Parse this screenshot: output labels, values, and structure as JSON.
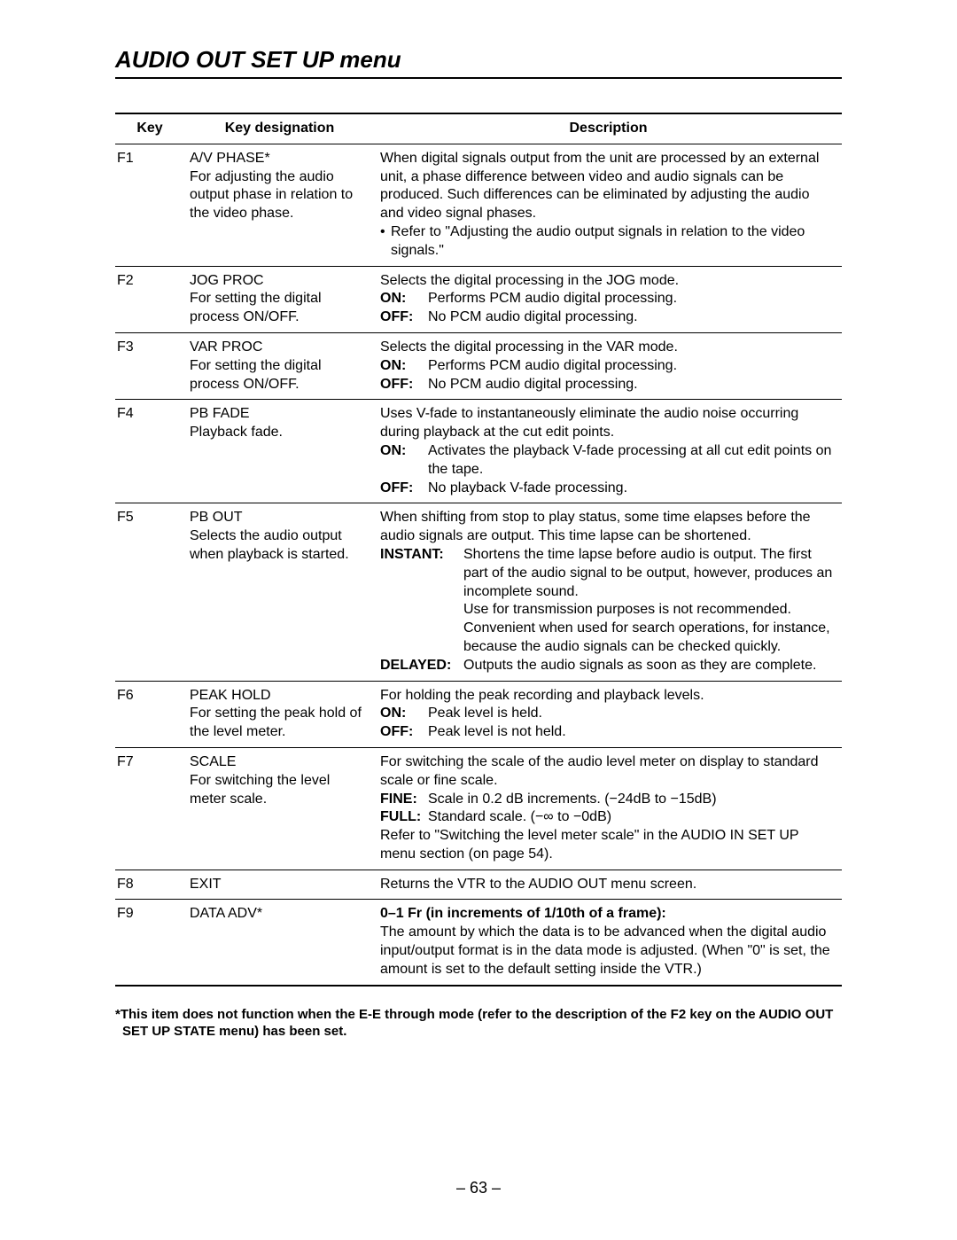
{
  "title": "AUDIO OUT SET UP menu",
  "headers": {
    "key": "Key",
    "designation": "Key designation",
    "description": "Description"
  },
  "rows": [
    {
      "key": "F1",
      "term": "A/V PHASE*",
      "sub": "For adjusting the audio output phase in relation to the video phase.",
      "desc_intro": "When digital signals output from the unit are processed by an external unit, a phase difference between video and audio signals can be produced. Such differences can be eliminated by adjusting the audio and video signal phases.",
      "bullets": [
        "Refer to \"Adjusting the audio output signals in relation to the video signals.\""
      ]
    },
    {
      "key": "F2",
      "term": "JOG PROC",
      "sub": "For setting the digital process ON/OFF.",
      "desc_intro": "Selects the digital processing in the JOG mode.",
      "options": [
        {
          "label": "ON:",
          "text": "Performs PCM audio digital processing."
        },
        {
          "label": "OFF:",
          "text": "No PCM audio digital processing."
        }
      ]
    },
    {
      "key": "F3",
      "term": "VAR PROC",
      "sub": "For setting the digital process ON/OFF.",
      "desc_intro": "Selects the digital processing in the VAR mode.",
      "options": [
        {
          "label": "ON:",
          "text": "Performs PCM audio digital processing."
        },
        {
          "label": "OFF:",
          "text": "No PCM audio digital processing."
        }
      ]
    },
    {
      "key": "F4",
      "term": "PB FADE",
      "sub": "Playback fade.",
      "desc_intro": "Uses V-fade to instantaneously eliminate the audio noise occurring during playback at the cut edit points.",
      "options": [
        {
          "label": "ON:",
          "text": "Activates the playback V-fade processing at all cut edit points on the tape."
        },
        {
          "label": "OFF:",
          "text": "No playback V-fade processing."
        }
      ]
    },
    {
      "key": "F5",
      "term": "PB OUT",
      "sub": "Selects the audio output when playback is started.",
      "desc_intro": "When shifting from stop to play status, some time elapses before the audio signals are output. This time lapse can be shortened.",
      "options_wide": [
        {
          "label": "INSTANT:",
          "text": "Shortens the time lapse before audio is output. The first part of the audio signal to be output, however, produces an incomplete sound.\nUse for transmission purposes is not recommended. Convenient when used for search operations, for instance, because the audio signals can be checked quickly."
        },
        {
          "label": "DELAYED:",
          "text": "Outputs the audio signals as soon as they are complete."
        }
      ]
    },
    {
      "key": "F6",
      "term": "PEAK HOLD",
      "sub": "For setting the peak hold of the level meter.",
      "desc_intro": "For holding the peak recording and playback levels.",
      "options": [
        {
          "label": "ON:",
          "text": "Peak level is held."
        },
        {
          "label": "OFF:",
          "text": "Peak level is not held."
        }
      ]
    },
    {
      "key": "F7",
      "term": "SCALE",
      "sub": "For switching the level meter scale.",
      "desc_intro": "For switching the scale of the audio level meter on display to standard scale or fine scale.",
      "options": [
        {
          "label": "FINE:",
          "text": "Scale in 0.2 dB increments. (−24dB to −15dB)"
        },
        {
          "label": "FULL:",
          "text": "Standard scale. (−∞ to −0dB)"
        }
      ],
      "desc_tail": "Refer to \"Switching the level meter scale\" in the AUDIO IN SET UP menu section (on page 54)."
    },
    {
      "key": "F8",
      "term": "EXIT",
      "sub": "",
      "desc_intro": "Returns the VTR to the AUDIO OUT menu screen."
    },
    {
      "key": "F9",
      "term": "DATA ADV*",
      "sub": "",
      "desc_bold": "0–1 Fr (in increments of 1/10th of a frame):",
      "desc_intro": "The amount by which the data is to be advanced when the digital audio input/output format is in the data mode is adjusted. (When \"0\" is set, the amount is set to the default setting inside the VTR.)"
    }
  ],
  "footnote": "*This item does not function when the E-E through mode (refer to the description of the F2 key on the AUDIO OUT SET UP STATE menu) has been set.",
  "pagenum": "– 63 –"
}
